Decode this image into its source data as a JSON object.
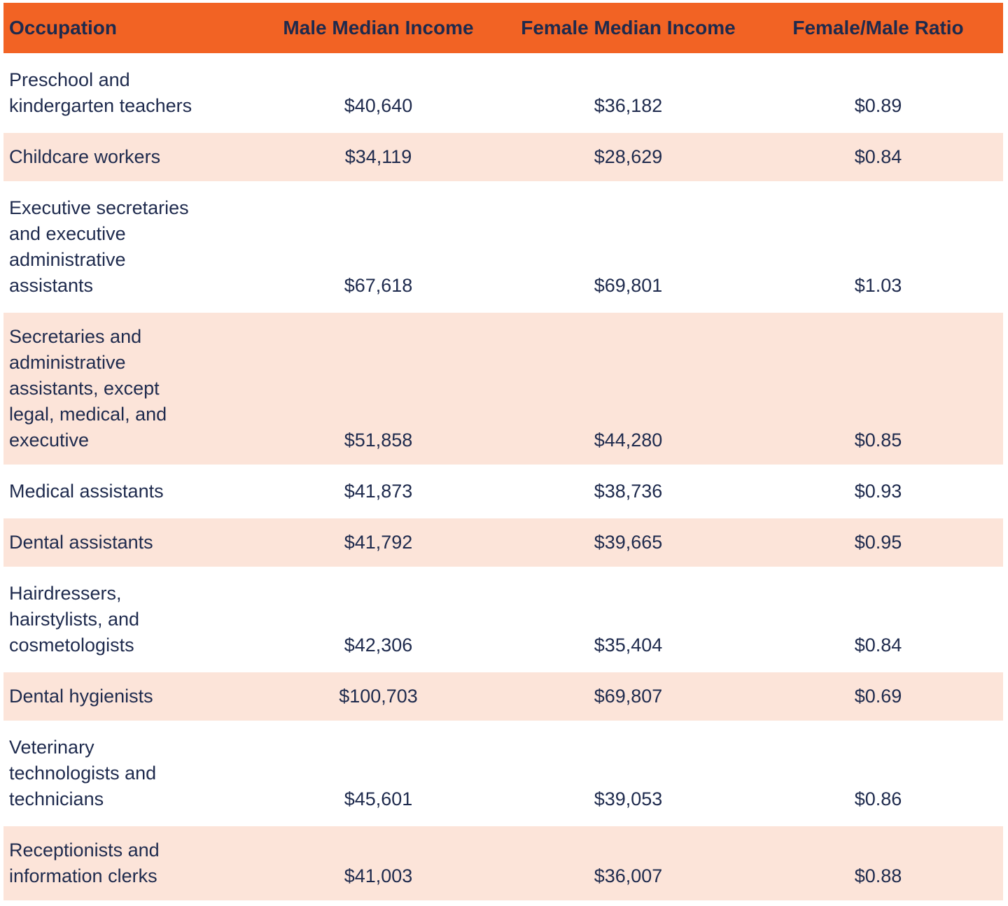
{
  "header": {
    "columns": [
      "Occupation",
      "Male Median Income",
      "Female Median Income",
      "Female/Male Ratio"
    ]
  },
  "rows": [
    {
      "occupation": "Preschool and kindergarten teachers",
      "male_income": "$40,640",
      "female_income": "$36,182",
      "ratio": "$0.89"
    },
    {
      "occupation": "Childcare workers",
      "male_income": "$34,119",
      "female_income": "$28,629",
      "ratio": "$0.84"
    },
    {
      "occupation": "Executive secretaries and executive administrative assistants",
      "male_income": "$67,618",
      "female_income": "$69,801",
      "ratio": "$1.03"
    },
    {
      "occupation": "Secretaries and administrative assistants, except legal, medical, and executive",
      "male_income": "$51,858",
      "female_income": "$44,280",
      "ratio": "$0.85"
    },
    {
      "occupation": "Medical assistants",
      "male_income": "$41,873",
      "female_income": "$38,736",
      "ratio": "$0.93"
    },
    {
      "occupation": "Dental assistants",
      "male_income": "$41,792",
      "female_income": "$39,665",
      "ratio": "$0.95"
    },
    {
      "occupation": "Hairdressers, hairstylists, and cosmetologists",
      "male_income": "$42,306",
      "female_income": "$35,404",
      "ratio": "$0.84"
    },
    {
      "occupation": "Dental hygienists",
      "male_income": "$100,703",
      "female_income": "$69,807",
      "ratio": "$0.69"
    },
    {
      "occupation": "Veterinary technologists and technicians",
      "male_income": "$45,601",
      "female_income": "$39,053",
      "ratio": "$0.86"
    },
    {
      "occupation": "Receptionists and information clerks",
      "male_income": "$41,003",
      "female_income": "$36,007",
      "ratio": "$0.88"
    }
  ],
  "colors": {
    "header_bg": "#f26324",
    "header_text": "#1e2a4d",
    "text": "#1e2a4d",
    "row_bg": "#ffffff",
    "row_alt_bg": "#fce4d9"
  },
  "chart_data": {
    "type": "table",
    "title": "",
    "columns": [
      "Occupation",
      "Male Median Income",
      "Female Median Income",
      "Female/Male Ratio"
    ],
    "rows": [
      [
        "Preschool and kindergarten teachers",
        40640,
        36182,
        0.89
      ],
      [
        "Childcare workers",
        34119,
        28629,
        0.84
      ],
      [
        "Executive secretaries and executive administrative assistants",
        67618,
        69801,
        1.03
      ],
      [
        "Secretaries and administrative assistants, except legal, medical, and executive",
        51858,
        44280,
        0.85
      ],
      [
        "Medical assistants",
        41873,
        38736,
        0.93
      ],
      [
        "Dental assistants",
        41792,
        39665,
        0.95
      ],
      [
        "Hairdressers, hairstylists, and cosmetologists",
        42306,
        35404,
        0.84
      ],
      [
        "Dental hygienists",
        100703,
        69807,
        0.69
      ],
      [
        "Veterinary technologists and technicians",
        45601,
        39053,
        0.86
      ],
      [
        "Receptionists and information clerks",
        41003,
        36007,
        0.88
      ]
    ],
    "layout": {
      "striped": true,
      "stripe_pattern": "white-peach-alternating",
      "header_style": "orange-bar-bold-navy-text",
      "value_alignment": "center-bottom"
    }
  }
}
